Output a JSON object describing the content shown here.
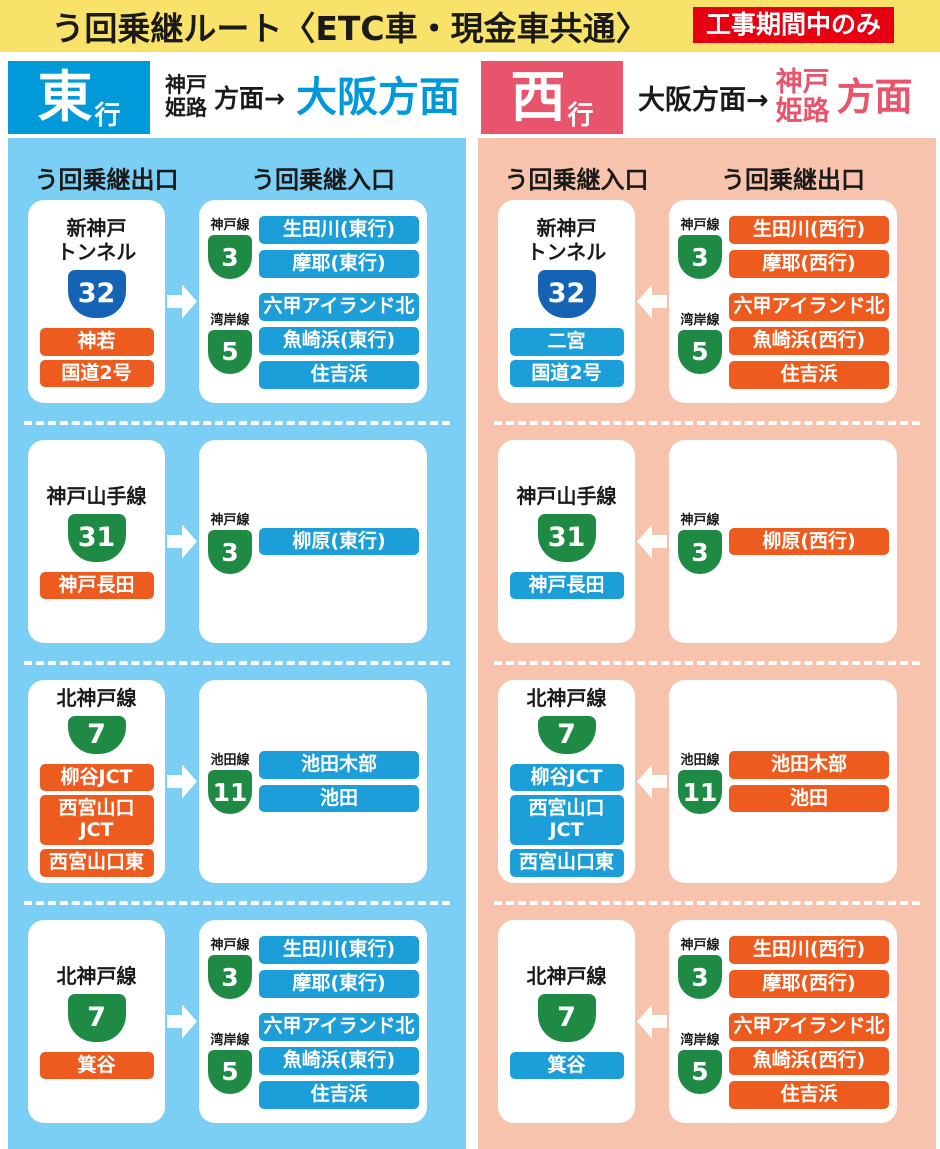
{
  "title_bar": {
    "title": "う回乗継ルート〈ETC車・現金車共通〉",
    "badge": "工事期間中のみ"
  },
  "colors": {
    "yellow_bar": "#F8E26A",
    "badge_red": "#E60012",
    "east_accent": "#0099D9",
    "east_panel": "#7BCEF4",
    "west_accent": "#E8546B",
    "west_panel": "#F8C3AC",
    "chip_blue": "#1C9ED9",
    "chip_orange": "#EE5B1E",
    "shield_green": "#1E8A44",
    "shield_blue": "#1563B5",
    "ink": "#1A1A1A"
  },
  "east": {
    "badge_main": "東",
    "badge_sub": "行",
    "route_from": "神戸\n姫路",
    "route_mid": "方面→",
    "route_to": "大阪方面",
    "labels": {
      "left": "う回乗継出口",
      "right": "う回乗継入口"
    },
    "left_role": "exit",
    "right_role": "entry",
    "arrow_dir": "right",
    "sections": [
      {
        "left_card": {
          "name": "新神戸\nトンネル",
          "shield_num": "32",
          "shield_color": "blue",
          "chip_color": "orange",
          "chips": [
            "神若",
            "国道2号"
          ]
        },
        "right_card": {
          "chip_color": "blue",
          "groups": [
            {
              "line": "神戸線",
              "shield_num": "3",
              "shield_color": "green",
              "chips": [
                "生田川(東行)",
                "摩耶(東行)"
              ]
            },
            {
              "line": "湾岸線",
              "shield_num": "5",
              "shield_color": "green",
              "chips": [
                "六甲アイランド北",
                "魚崎浜(東行)",
                "住吉浜"
              ]
            }
          ]
        }
      },
      {
        "left_card": {
          "name": "神戸山手線",
          "shield_num": "31",
          "shield_color": "green",
          "chip_color": "orange",
          "chips": [
            "神戸長田"
          ]
        },
        "right_card": {
          "chip_color": "blue",
          "groups": [
            {
              "line": "神戸線",
              "shield_num": "3",
              "shield_color": "green",
              "chips": [
                "柳原(東行)"
              ]
            }
          ]
        }
      },
      {
        "left_card": {
          "name": "北神戸線",
          "shield_num": "7",
          "shield_color": "green",
          "chip_color": "orange",
          "chips": [
            "柳谷JCT",
            "西宮山口\nJCT",
            "西宮山口東"
          ]
        },
        "right_card": {
          "chip_color": "blue",
          "groups": [
            {
              "line": "池田線",
              "shield_num": "11",
              "shield_color": "green",
              "chips": [
                "池田木部",
                "池田"
              ]
            }
          ]
        }
      },
      {
        "left_card": {
          "name": "北神戸線",
          "shield_num": "7",
          "shield_color": "green",
          "chip_color": "orange",
          "chips": [
            "箕谷"
          ]
        },
        "right_card": {
          "chip_color": "blue",
          "groups": [
            {
              "line": "神戸線",
              "shield_num": "3",
              "shield_color": "green",
              "chips": [
                "生田川(東行)",
                "摩耶(東行)"
              ]
            },
            {
              "line": "湾岸線",
              "shield_num": "5",
              "shield_color": "green",
              "chips": [
                "六甲アイランド北",
                "魚崎浜(東行)",
                "住吉浜"
              ]
            }
          ]
        }
      }
    ]
  },
  "west": {
    "badge_main": "西",
    "badge_sub": "行",
    "route_from": "大阪方面→",
    "route_to_stack": "神戸\n姫路",
    "route_to": "方面",
    "labels": {
      "left": "う回乗継入口",
      "right": "う回乗継出口"
    },
    "left_role": "entry",
    "right_role": "exit",
    "arrow_dir": "left",
    "sections": [
      {
        "left_card": {
          "name": "新神戸\nトンネル",
          "shield_num": "32",
          "shield_color": "blue",
          "chip_color": "blue",
          "chips": [
            "二宮",
            "国道2号"
          ]
        },
        "right_card": {
          "chip_color": "orange",
          "groups": [
            {
              "line": "神戸線",
              "shield_num": "3",
              "shield_color": "green",
              "chips": [
                "生田川(西行)",
                "摩耶(西行)"
              ]
            },
            {
              "line": "湾岸線",
              "shield_num": "5",
              "shield_color": "green",
              "chips": [
                "六甲アイランド北",
                "魚崎浜(西行)",
                "住吉浜"
              ]
            }
          ]
        }
      },
      {
        "left_card": {
          "name": "神戸山手線",
          "shield_num": "31",
          "shield_color": "green",
          "chip_color": "blue",
          "chips": [
            "神戸長田"
          ]
        },
        "right_card": {
          "chip_color": "orange",
          "groups": [
            {
              "line": "神戸線",
              "shield_num": "3",
              "shield_color": "green",
              "chips": [
                "柳原(西行)"
              ]
            }
          ]
        }
      },
      {
        "left_card": {
          "name": "北神戸線",
          "shield_num": "7",
          "shield_color": "green",
          "chip_color": "blue",
          "chips": [
            "柳谷JCT",
            "西宮山口\nJCT",
            "西宮山口東"
          ]
        },
        "right_card": {
          "chip_color": "orange",
          "groups": [
            {
              "line": "池田線",
              "shield_num": "11",
              "shield_color": "green",
              "chips": [
                "池田木部",
                "池田"
              ]
            }
          ]
        }
      },
      {
        "left_card": {
          "name": "北神戸線",
          "shield_num": "7",
          "shield_color": "green",
          "chip_color": "blue",
          "chips": [
            "箕谷"
          ]
        },
        "right_card": {
          "chip_color": "orange",
          "groups": [
            {
              "line": "神戸線",
              "shield_num": "3",
              "shield_color": "green",
              "chips": [
                "生田川(西行)",
                "摩耶(西行)"
              ]
            },
            {
              "line": "湾岸線",
              "shield_num": "5",
              "shield_color": "green",
              "chips": [
                "六甲アイランド北",
                "魚崎浜(西行)",
                "住吉浜"
              ]
            }
          ]
        }
      }
    ]
  }
}
